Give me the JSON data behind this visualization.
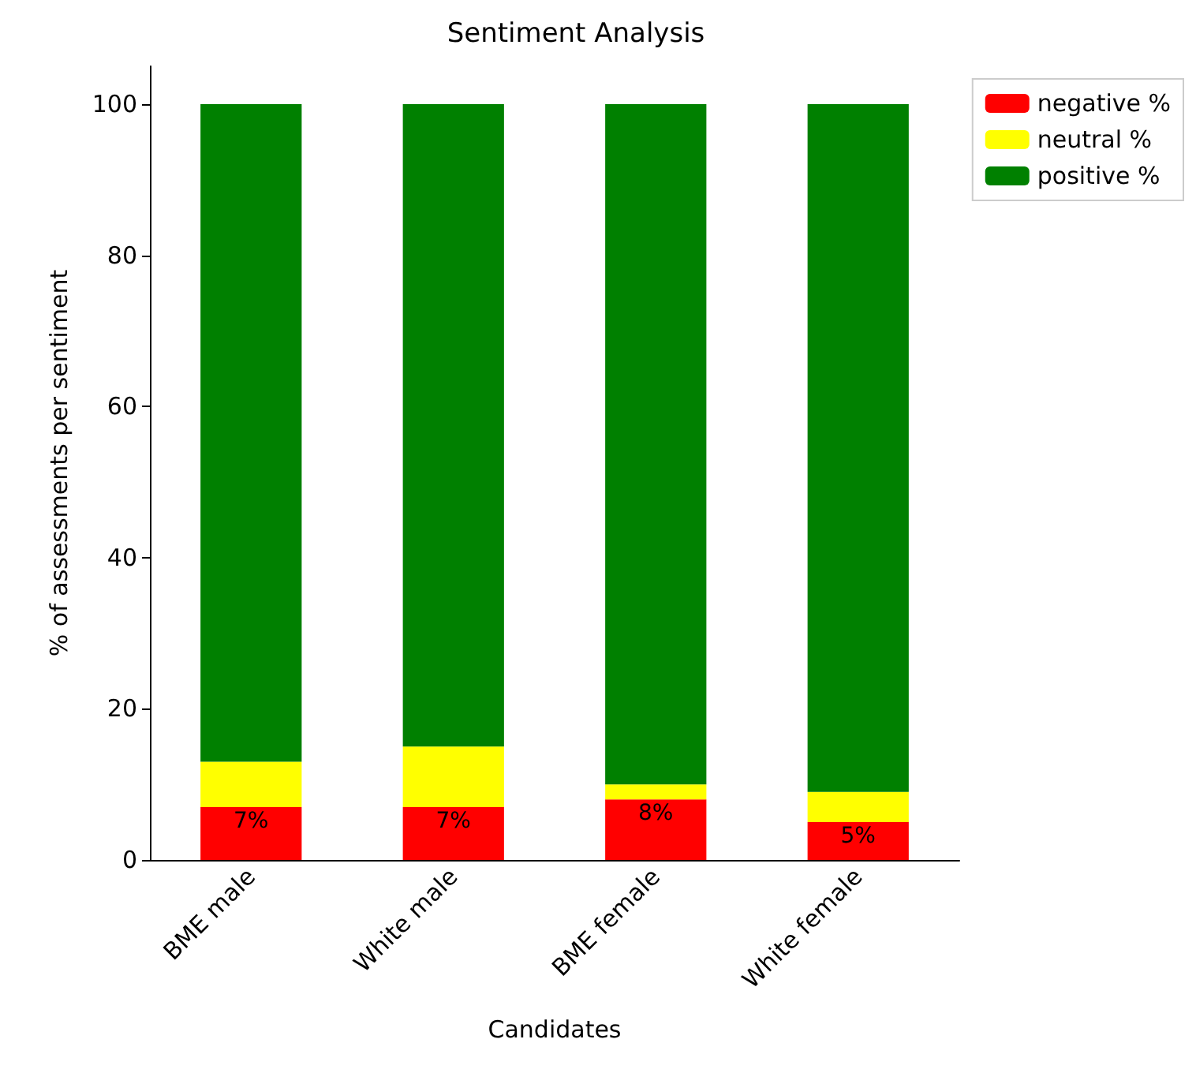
{
  "chart_data": {
    "type": "bar",
    "stacked": true,
    "title": "Sentiment Analysis",
    "xlabel": "Candidates",
    "ylabel": "% of assessments per sentiment",
    "categories": [
      "BME male",
      "White male",
      "BME female",
      "White female"
    ],
    "series": [
      {
        "name": "negative %",
        "color": "#ff0000",
        "values": [
          7,
          7,
          8,
          5
        ],
        "value_labels": [
          "7%",
          "7%",
          "8%",
          "5%"
        ]
      },
      {
        "name": "neutral %",
        "color": "#ffff00",
        "values": [
          6,
          8,
          2,
          4
        ]
      },
      {
        "name": "positive %",
        "color": "#008000",
        "values": [
          87,
          85,
          90,
          91
        ]
      }
    ],
    "ylim": [
      0,
      105
    ],
    "yticks": [
      0,
      20,
      40,
      60,
      80,
      100
    ],
    "grid": false,
    "legend": "top right"
  }
}
